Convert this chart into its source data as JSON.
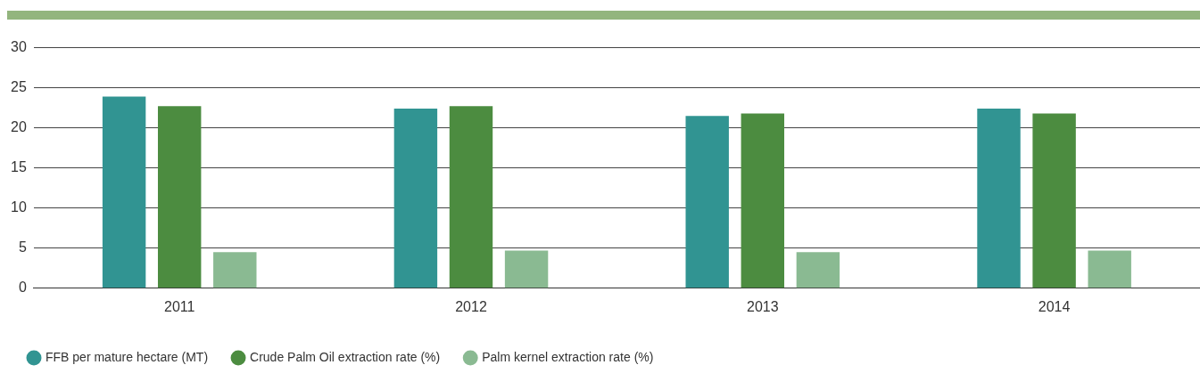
{
  "chart_data": {
    "type": "bar",
    "categories": [
      "2011",
      "2012",
      "2013",
      "2014"
    ],
    "series": [
      {
        "name": "FFB per mature hectare (MT)",
        "color": "#319492",
        "values": [
          23.9,
          22.4,
          21.5,
          22.4
        ]
      },
      {
        "name": "Crude Palm Oil extraction rate (%)",
        "color": "#4c8c40",
        "values": [
          22.7,
          22.7,
          21.8,
          21.8
        ]
      },
      {
        "name": "Palm kernel extraction rate (%)",
        "color": "#8aba92",
        "values": [
          4.5,
          4.7,
          4.5,
          4.7
        ]
      }
    ],
    "ylim": [
      0,
      30
    ],
    "yticks": [
      0,
      5,
      10,
      15,
      20,
      25,
      30
    ],
    "grid": "y",
    "legend": "bottom"
  }
}
